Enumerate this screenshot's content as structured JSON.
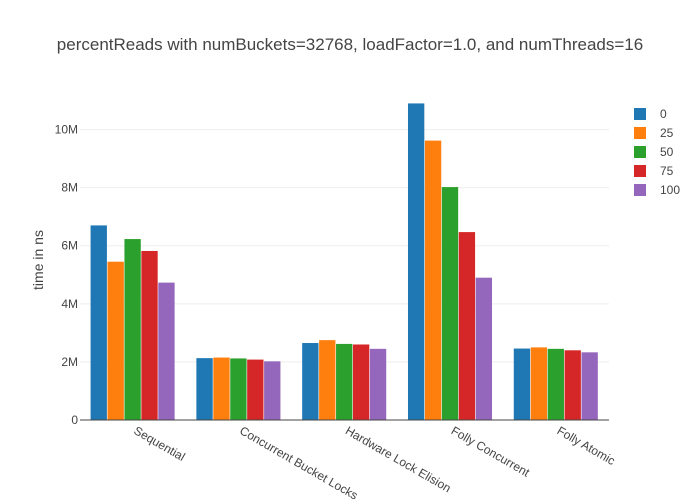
{
  "chart_data": {
    "type": "bar",
    "title": "percentReads with numBuckets=32768, loadFactor=1.0, and numThreads=16",
    "xlabel": "",
    "ylabel": "time in ns",
    "categories": [
      "Sequential",
      "Concurrent Bucket Locks",
      "Hardware Lock Elision",
      "Folly Concurrent",
      "Folly Atomic"
    ],
    "series": [
      {
        "name": "0",
        "color": "#1f77b4",
        "values": [
          6700000,
          2130000,
          2650000,
          10900000,
          2460000
        ]
      },
      {
        "name": "25",
        "color": "#ff7f0e",
        "values": [
          5450000,
          2150000,
          2750000,
          9620000,
          2500000
        ]
      },
      {
        "name": "50",
        "color": "#2ca02c",
        "values": [
          6230000,
          2120000,
          2620000,
          8020000,
          2450000
        ]
      },
      {
        "name": "75",
        "color": "#d62728",
        "values": [
          5820000,
          2080000,
          2600000,
          6470000,
          2400000
        ]
      },
      {
        "name": "100",
        "color": "#9467bd",
        "values": [
          4730000,
          2020000,
          2450000,
          4900000,
          2330000
        ]
      }
    ],
    "ylim": [
      0,
      11500000
    ],
    "yticks": [
      0,
      2000000,
      4000000,
      6000000,
      8000000,
      10000000
    ],
    "ytick_labels": [
      "0",
      "2M",
      "4M",
      "6M",
      "8M",
      "10M"
    ],
    "grid": true,
    "legend_position": "top-right"
  }
}
